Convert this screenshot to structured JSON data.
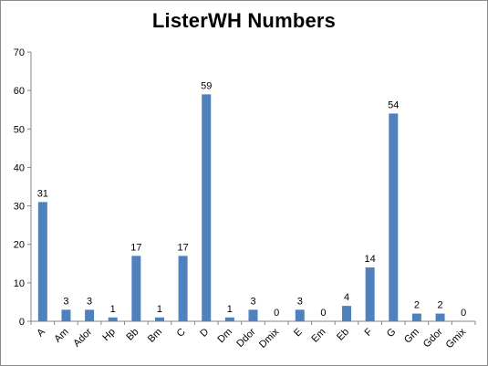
{
  "chart_data": {
    "type": "bar",
    "title": "ListerWH Numbers",
    "xlabel": "",
    "ylabel": "",
    "categories": [
      "A",
      "Am",
      "Ador",
      "Hp",
      "Bb",
      "Bm",
      "C",
      "D",
      "Dm",
      "Ddor",
      "Dmix",
      "E",
      "Em",
      "Eb",
      "F",
      "G",
      "Gm",
      "Gdor",
      "Gmix"
    ],
    "series": [
      {
        "values": [
          31,
          3,
          3,
          1,
          17,
          1,
          17,
          59,
          1,
          3,
          0,
          3,
          0,
          4,
          14,
          54,
          2,
          2,
          0
        ]
      }
    ],
    "ylim": [
      0,
      70
    ],
    "yticks": [
      0,
      10,
      20,
      30,
      40,
      50,
      60,
      70
    ],
    "grid": false,
    "legend": "none",
    "data_labels": true,
    "bar_color": "#4f81bd"
  }
}
